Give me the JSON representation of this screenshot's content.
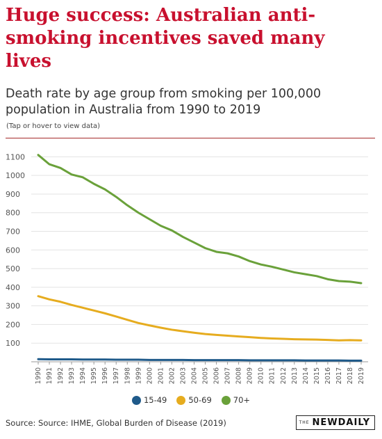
{
  "header": {
    "title": "Huge success: Australian anti-smoking incentives saved many lives",
    "subtitle": "Death rate by age group from smoking per 100,000 population in Australia from 1990 to 2019",
    "note": "(Tap or hover to view data)"
  },
  "footer": {
    "source": "Source: Source: IHME, Global Burden of Disease (2019)",
    "logo_small": "THE",
    "logo_brand": "NEWDAILY"
  },
  "chart_data": {
    "type": "line",
    "title": "",
    "xlabel": "",
    "ylabel": "",
    "ylim": [
      0,
      1150
    ],
    "yticks": [
      100,
      200,
      300,
      400,
      500,
      600,
      700,
      800,
      900,
      1000,
      1100
    ],
    "grid": true,
    "legend_position": "bottom",
    "x": [
      "1990",
      "1991",
      "1992",
      "1993",
      "1994",
      "1995",
      "1996",
      "1997",
      "1998",
      "1999",
      "2000",
      "2001",
      "2002",
      "2003",
      "2004",
      "2005",
      "2006",
      "2007",
      "2008",
      "2009",
      "2010",
      "2011",
      "2012",
      "2013",
      "2014",
      "2015",
      "2016",
      "2017",
      "2018",
      "2019"
    ],
    "series": [
      {
        "name": "15-49",
        "color": "#1f5a8a",
        "values": [
          14,
          13,
          13,
          13,
          12,
          12,
          12,
          11,
          11,
          11,
          10,
          10,
          10,
          10,
          9,
          9,
          9,
          9,
          9,
          8,
          8,
          8,
          8,
          8,
          7,
          7,
          7,
          7,
          6,
          6
        ]
      },
      {
        "name": "50-69",
        "color": "#e6ac1f",
        "values": [
          352,
          335,
          322,
          305,
          290,
          275,
          260,
          243,
          225,
          208,
          195,
          183,
          172,
          164,
          156,
          149,
          144,
          140,
          136,
          132,
          128,
          125,
          123,
          121,
          120,
          119,
          117,
          115,
          116,
          115
        ]
      },
      {
        "name": "70+",
        "color": "#6aa13a",
        "values": [
          1110,
          1060,
          1040,
          1005,
          990,
          955,
          925,
          885,
          840,
          800,
          765,
          730,
          705,
          670,
          640,
          610,
          590,
          582,
          565,
          540,
          522,
          510,
          495,
          480,
          470,
          460,
          443,
          433,
          430,
          422
        ]
      }
    ]
  }
}
